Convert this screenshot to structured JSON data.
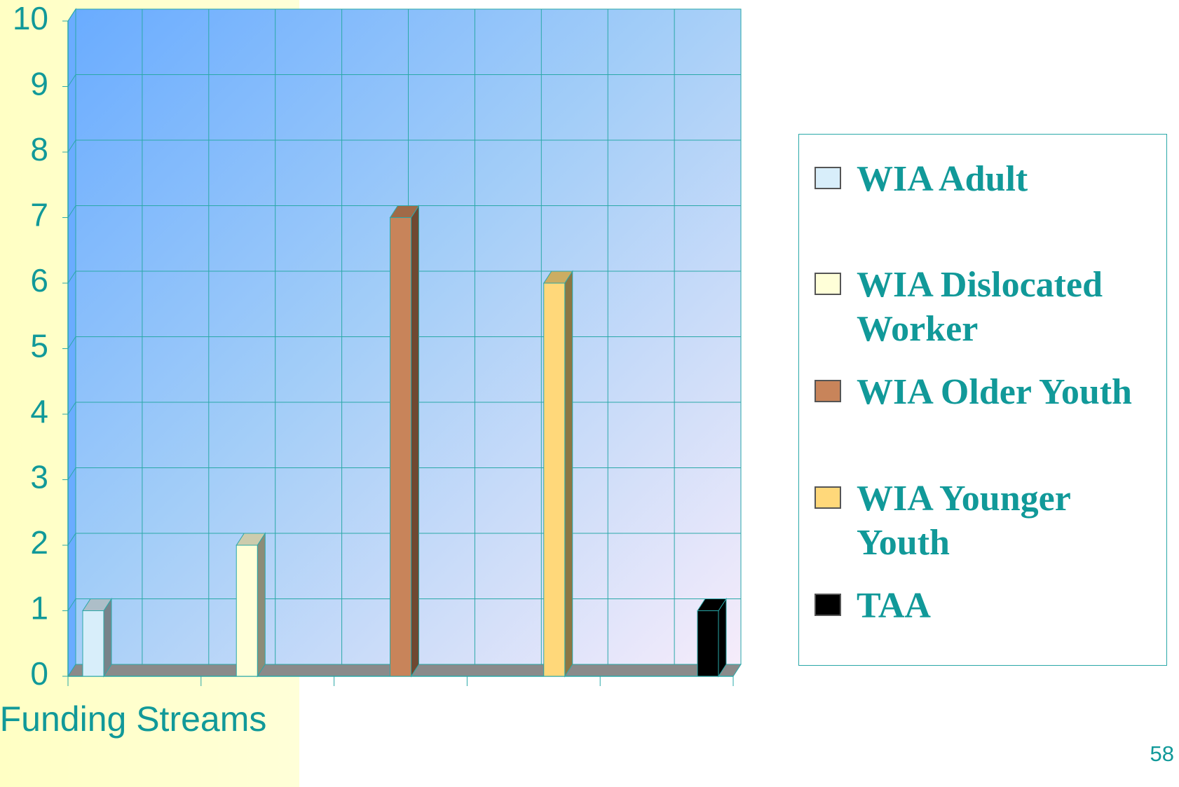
{
  "chart_data": {
    "type": "bar",
    "categories": [
      "Funding Streams"
    ],
    "series": [
      {
        "name": "WIA Adult",
        "color": "#d8eefa",
        "values": [
          1
        ]
      },
      {
        "name": "WIA Dislocated Worker",
        "color": "#ffffd8",
        "values": [
          2
        ]
      },
      {
        "name": "WIA Older Youth",
        "color": "#c8845a",
        "values": [
          7
        ]
      },
      {
        "name": "WIA Younger Youth",
        "color": "#ffd87a",
        "values": [
          6
        ]
      },
      {
        "name": "TAA",
        "color": "#000000",
        "values": [
          1
        ]
      }
    ],
    "ylim": [
      0,
      10
    ],
    "yticks": [
      0,
      1,
      2,
      3,
      4,
      5,
      6,
      7,
      8,
      9,
      10
    ],
    "grid": true,
    "legend": "right"
  },
  "page_number": "58"
}
